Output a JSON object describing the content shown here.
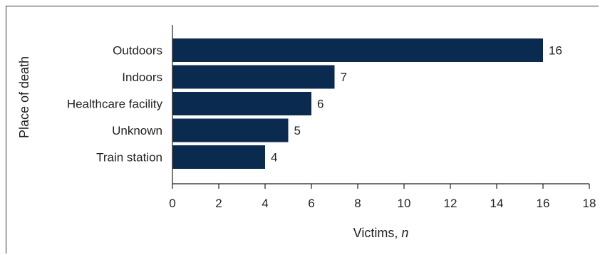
{
  "chart_data": {
    "type": "bar",
    "orientation": "horizontal",
    "categories": [
      "Outdoors",
      "Indoors",
      "Healthcare facility",
      "Unknown",
      "Train station"
    ],
    "values": [
      16,
      7,
      6,
      5,
      4
    ],
    "data_labels": [
      "16",
      "7",
      "6",
      "5",
      "4"
    ],
    "title": "",
    "xlabel": "Victims, ",
    "xlabel_italic": "n",
    "ylabel": "Place of death",
    "xlim": [
      0,
      18
    ],
    "xticks": [
      "0",
      "2",
      "4",
      "6",
      "8",
      "10",
      "12",
      "14",
      "16",
      "18"
    ],
    "grid": false,
    "legend": "none",
    "bar_color": "#0b2a4f"
  }
}
